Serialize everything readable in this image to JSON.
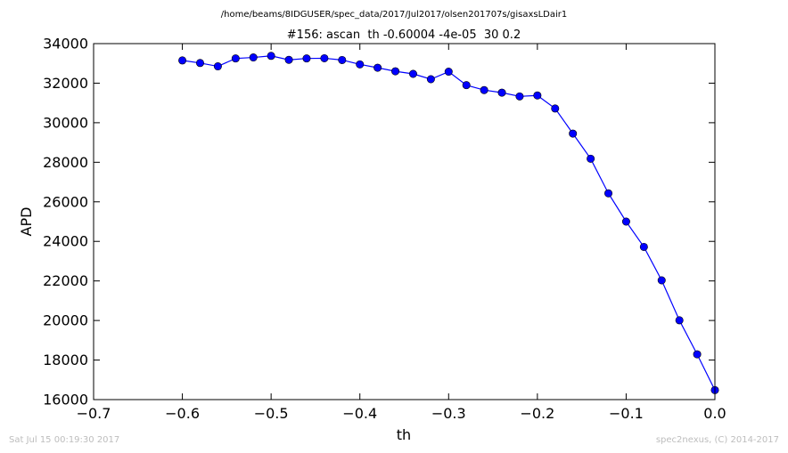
{
  "header": {
    "path": "/home/beams/8IDGUSER/spec_data/2017/Jul2017/olsen201707s/gisaxsLDair1",
    "title": "#156: ascan  th -0.60004 -4e-05  30 0.2"
  },
  "footer": {
    "timestamp": "Sat Jul 15 00:19:30 2017",
    "credit": "spec2nexus, (C) 2014-2017"
  },
  "chart_data": {
    "type": "line",
    "title": "#156: ascan  th -0.60004 -4e-05  30 0.2",
    "xlabel": "th",
    "ylabel": "APD",
    "xlim": [
      -0.7,
      0.0
    ],
    "ylim": [
      16000,
      34000
    ],
    "xticks": [
      -0.7,
      -0.6,
      -0.5,
      -0.4,
      -0.3,
      -0.2,
      -0.1,
      0.0
    ],
    "xtick_labels": [
      "−0.7",
      "−0.6",
      "−0.5",
      "−0.4",
      "−0.3",
      "−0.2",
      "−0.1",
      "0.0"
    ],
    "yticks": [
      16000,
      18000,
      20000,
      22000,
      24000,
      26000,
      28000,
      30000,
      32000,
      34000
    ],
    "ytick_labels": [
      "16000",
      "18000",
      "20000",
      "22000",
      "24000",
      "26000",
      "28000",
      "30000",
      "32000",
      "34000"
    ],
    "grid": false,
    "line_color": "#0000ff",
    "marker_color": "#0000ff",
    "series": [
      {
        "x": [
          -0.6,
          -0.58,
          -0.56,
          -0.54,
          -0.52,
          -0.5,
          -0.48,
          -0.46,
          -0.44,
          -0.42,
          -0.4,
          -0.38,
          -0.36,
          -0.34,
          -0.32,
          -0.3,
          -0.28,
          -0.26,
          -0.24,
          -0.22,
          -0.2,
          -0.18,
          -0.16,
          -0.14,
          -0.12,
          -0.1,
          -0.08,
          -0.06,
          -0.04,
          -0.02,
          0.0
        ],
        "y": [
          33150,
          33020,
          32850,
          33250,
          33300,
          33380,
          33180,
          33250,
          33260,
          33170,
          32950,
          32780,
          32600,
          32470,
          32200,
          32580,
          31900,
          31650,
          31520,
          31330,
          31380,
          30720,
          29450,
          28180,
          26430,
          25000,
          23720,
          22030,
          20010,
          18290,
          16480
        ]
      }
    ]
  }
}
